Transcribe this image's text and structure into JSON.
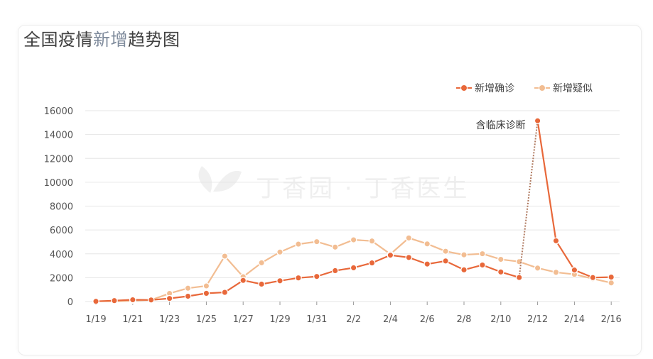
{
  "title": {
    "part1": "全国疫情",
    "part2": "新增",
    "part3": "趋势图"
  },
  "watermark": "丁香园 · 丁香医生",
  "chart_data": {
    "type": "line",
    "categories": [
      "1/19",
      "1/20",
      "1/21",
      "1/22",
      "1/23",
      "1/24",
      "1/25",
      "1/26",
      "1/27",
      "1/28",
      "1/29",
      "1/30",
      "1/31",
      "2/1",
      "2/2",
      "2/3",
      "2/4",
      "2/5",
      "2/6",
      "2/7",
      "2/8",
      "2/9",
      "2/10",
      "2/11",
      "2/12",
      "2/13",
      "2/14",
      "2/15",
      "2/16"
    ],
    "tick_labels": [
      "1/19",
      "1/21",
      "1/23",
      "1/25",
      "1/27",
      "1/29",
      "1/31",
      "2/2",
      "2/4",
      "2/6",
      "2/8",
      "2/10",
      "2/12",
      "2/14",
      "2/16"
    ],
    "series": [
      {
        "name": "新增确诊",
        "color": "#e8683a",
        "values": [
          17,
          77,
          149,
          131,
          259,
          444,
          688,
          769,
          1771,
          1459,
          1737,
          1982,
          2102,
          2590,
          2829,
          3235,
          3887,
          3694,
          3143,
          3399,
          2656,
          3062,
          2478,
          2015,
          15152,
          5090,
          2641,
          2009,
          2048
        ]
      },
      {
        "name": "新增疑似",
        "color": "#f2bd92",
        "values": [
          27,
          23,
          65,
          130,
          680,
          1118,
          1309,
          3806,
          2077,
          3248,
          4148,
          4812,
          5019,
          4562,
          5173,
          5072,
          3971,
          5328,
          4833,
          4214,
          3916,
          4008,
          3536,
          3342,
          2807,
          2450,
          2277,
          1918,
          1563
        ]
      }
    ],
    "ylim": [
      0,
      16000
    ],
    "yticks": [
      "0",
      "2000",
      "4000",
      "6000",
      "8000",
      "10000",
      "12000",
      "14000",
      "16000"
    ],
    "annotation": {
      "text": "含临床诊断",
      "at_category": "2/12"
    },
    "legend": "top-right",
    "grid": true
  }
}
